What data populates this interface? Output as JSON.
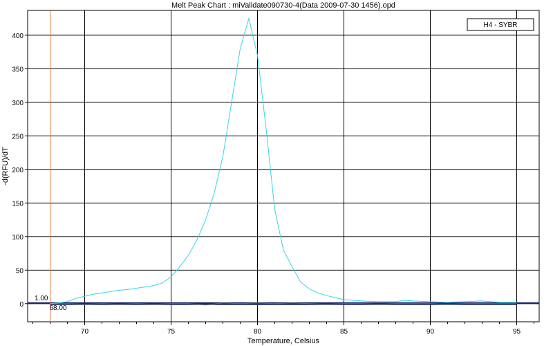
{
  "chart_data": {
    "type": "line",
    "title": "Melt Peak Chart : miValidate090730-4(Data 2009-07-30 1456).opd",
    "xlabel": "Temperature, Celsius",
    "ylabel": "-d(RFU)/dT",
    "xlim": [
      66.7,
      96.3
    ],
    "ylim": [
      -27,
      437
    ],
    "xticks": [
      70,
      75,
      80,
      85,
      90,
      95
    ],
    "yticks": [
      0,
      50,
      100,
      150,
      200,
      250,
      300,
      350,
      400
    ],
    "grid": true,
    "legend": {
      "position": "top-right",
      "label": "H4 - SYBR"
    },
    "threshold": {
      "value": 1.0,
      "label": "1.00"
    },
    "marker": {
      "x": 68.0,
      "label": "68.00"
    },
    "series": [
      {
        "name": "H4 - SYBR",
        "color": "#33d6e6",
        "x": [
          68,
          68.5,
          69,
          69.5,
          70,
          70.5,
          71,
          71.5,
          72,
          72.5,
          73,
          73.5,
          74,
          74.5,
          75,
          75.5,
          76,
          76.5,
          77,
          77.5,
          78,
          78.5,
          79,
          79.5,
          80,
          80.5,
          81,
          81.5,
          82,
          82.5,
          83,
          83.5,
          84,
          84.5,
          85,
          85.5,
          86,
          87,
          88,
          88.5,
          89,
          90,
          91,
          92,
          93,
          94,
          95
        ],
        "y": [
          0,
          1,
          3,
          8,
          11,
          14,
          16,
          18,
          20,
          21,
          23,
          25,
          27,
          31,
          40,
          55,
          72,
          95,
          125,
          165,
          220,
          300,
          380,
          425,
          370,
          260,
          140,
          80,
          55,
          32,
          22,
          16,
          12,
          9,
          6,
          5,
          4,
          3,
          3,
          5,
          4,
          3,
          2,
          3,
          4,
          2,
          2
        ]
      },
      {
        "name": "",
        "color": "#6a6a6a",
        "x": [
          68,
          69,
          70,
          71,
          72,
          73,
          74,
          75,
          76,
          77,
          78,
          79,
          80,
          81,
          82,
          83,
          84,
          85,
          86,
          87,
          88,
          89,
          90,
          91,
          92,
          93,
          94,
          95
        ],
        "y": [
          0,
          0,
          -1,
          0,
          -1,
          0,
          -1,
          0,
          0,
          -2,
          1,
          0,
          1,
          0,
          1,
          0,
          -1,
          0,
          0,
          -1,
          0,
          0,
          0,
          -1,
          0,
          0,
          0,
          0
        ]
      },
      {
        "name": "",
        "color": "#1a2a6c",
        "x": [
          68,
          70,
          72,
          74,
          76,
          78,
          80,
          82,
          84,
          86,
          88,
          90,
          92,
          94,
          95
        ],
        "y": [
          -1,
          -1,
          -1,
          -1,
          -1,
          -1,
          -1,
          -1,
          -1,
          -1,
          -1,
          -1,
          -1,
          -1,
          -1
        ]
      }
    ]
  }
}
